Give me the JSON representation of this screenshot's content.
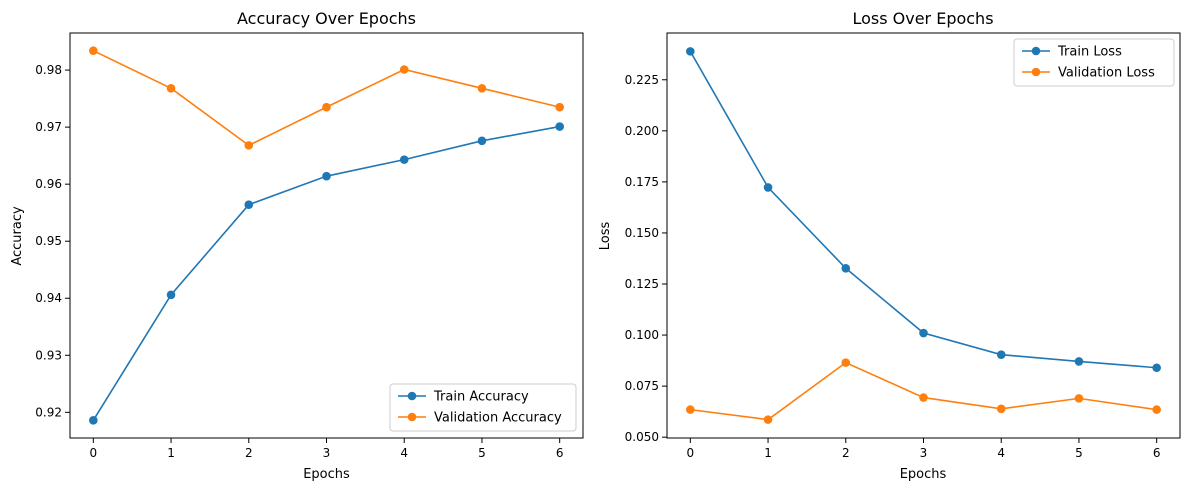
{
  "colors": {
    "train": "#1f77b4",
    "validation": "#ff7f0e"
  },
  "chart_data": [
    {
      "type": "line",
      "title": "Accuracy Over Epochs",
      "xlabel": "Epochs",
      "ylabel": "Accuracy",
      "x": [
        0,
        1,
        2,
        3,
        4,
        5,
        6
      ],
      "xticks": [
        "0",
        "1",
        "2",
        "3",
        "4",
        "5",
        "6"
      ],
      "xlim": [
        -0.3,
        6.3
      ],
      "yticks": [
        "0.92",
        "0.93",
        "0.94",
        "0.95",
        "0.96",
        "0.97",
        "0.98"
      ],
      "ylim": [
        0.9155,
        0.9865
      ],
      "grid": false,
      "legend_position": "lower right",
      "series": [
        {
          "name": "Train Accuracy",
          "color": "#1f77b4",
          "marker": "circle",
          "values": [
            0.9186,
            0.9406,
            0.9564,
            0.9614,
            0.9643,
            0.9676,
            0.9701
          ]
        },
        {
          "name": "Validation Accuracy",
          "color": "#ff7f0e",
          "marker": "circle",
          "values": [
            0.9834,
            0.9768,
            0.9668,
            0.9735,
            0.9801,
            0.9768,
            0.9735
          ]
        }
      ]
    },
    {
      "type": "line",
      "title": "Loss Over Epochs",
      "xlabel": "Epochs",
      "ylabel": "Loss",
      "x": [
        0,
        1,
        2,
        3,
        4,
        5,
        6
      ],
      "xticks": [
        "0",
        "1",
        "2",
        "3",
        "4",
        "5",
        "6"
      ],
      "xlim": [
        -0.3,
        6.3
      ],
      "yticks": [
        "0.050",
        "0.075",
        "0.100",
        "0.125",
        "0.150",
        "0.175",
        "0.200",
        "0.225"
      ],
      "ylim": [
        0.0496,
        0.2479
      ],
      "grid": false,
      "legend_position": "upper right",
      "series": [
        {
          "name": "Train Loss",
          "color": "#1f77b4",
          "marker": "circle",
          "values": [
            0.2389,
            0.1723,
            0.1327,
            0.101,
            0.0904,
            0.0871,
            0.084
          ]
        },
        {
          "name": "Validation Loss",
          "color": "#ff7f0e",
          "marker": "circle",
          "values": [
            0.0635,
            0.0586,
            0.0865,
            0.0694,
            0.0639,
            0.069,
            0.0635
          ]
        }
      ]
    }
  ]
}
